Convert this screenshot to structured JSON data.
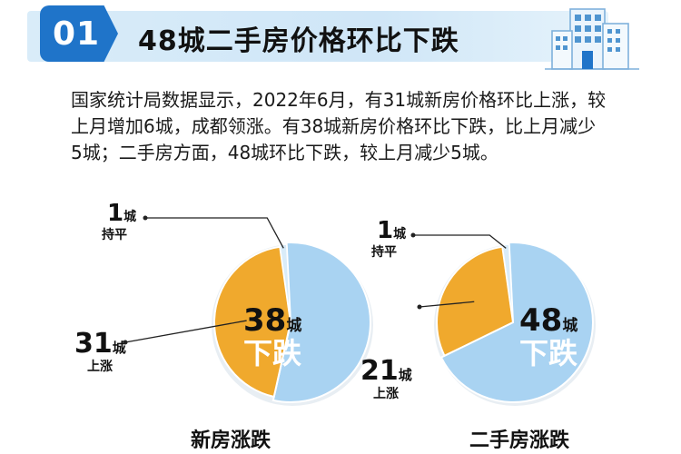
{
  "header": {
    "number": "01",
    "title": "48城二手房价格环比下跌"
  },
  "summary": "国家统计局数据显示，2022年6月，有31城新房价格环比上涨，较上月增加6城，成都领涨。有38城新房价格环比下跌，比上月减少5城；二手房方面，48城环比下跌，较上月减少5城。",
  "colors": {
    "rise": "#f0a92d",
    "fall": "#a9d3f2",
    "flat": "#d9ecf9",
    "fall_text": "#ffffff",
    "brand": "#1f74c9"
  },
  "chart_data": [
    {
      "type": "pie",
      "title": "新房涨跌",
      "unit": "城",
      "slices": [
        {
          "label": "下跌",
          "value": 38
        },
        {
          "label": "上涨",
          "value": 31
        },
        {
          "label": "持平",
          "value": 1
        }
      ]
    },
    {
      "type": "pie",
      "title": "二手房涨跌",
      "unit": "城",
      "slices": [
        {
          "label": "下跌",
          "value": 48
        },
        {
          "label": "上涨",
          "value": 21
        },
        {
          "label": "持平",
          "value": 1
        }
      ]
    }
  ]
}
